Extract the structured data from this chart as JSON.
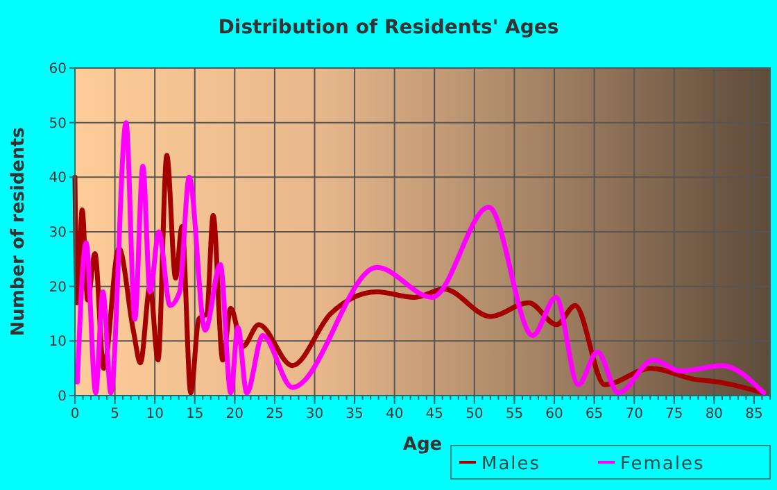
{
  "chart_data": {
    "type": "line",
    "title": "Distribution of Residents' Ages",
    "xlabel": "Age",
    "ylabel": "Number of residents",
    "xlim": [
      0,
      87
    ],
    "xticks": [
      0,
      5,
      10,
      15,
      20,
      25,
      30,
      35,
      40,
      45,
      50,
      55,
      60,
      65,
      70,
      75,
      80,
      85
    ],
    "ylim": [
      0,
      60
    ],
    "yticks": [
      0,
      10,
      20,
      30,
      40,
      50,
      60
    ],
    "grid": true,
    "legend": "bottom right",
    "line_style": "solid",
    "marker": "none",
    "series": [
      {
        "name": "Males",
        "color": "#a50000",
        "x": [
          0,
          0.3,
          0.9,
          1.6,
          2.5,
          3.6,
          5.5,
          7.3,
          8.2,
          9.4,
          10.4,
          11.5,
          12.6,
          13.4,
          14.5,
          15.5,
          16.5,
          17.3,
          18.5,
          19.5,
          21,
          23,
          27.2,
          32,
          37.8,
          42.5,
          46.2,
          52,
          56.8,
          60.3,
          62.6,
          66.3,
          72.1,
          77.5,
          80.5,
          86.2
        ],
        "values": [
          40,
          17,
          34,
          17.5,
          26,
          5,
          27,
          12,
          6,
          20,
          6.5,
          44,
          21.5,
          31,
          0.5,
          14,
          15,
          33,
          6.5,
          16,
          9,
          13,
          5.5,
          15,
          19,
          18,
          19.5,
          14.5,
          17,
          13,
          16.5,
          2,
          5,
          3,
          2.5,
          0.5
        ]
      },
      {
        "name": "Females",
        "color": "#ff00ff",
        "x": [
          0.3,
          1.4,
          2.6,
          3.5,
          4.5,
          6.4,
          7.5,
          8.5,
          9.4,
          10.5,
          11.9,
          13.1,
          14.3,
          16.3,
          18.2,
          19.5,
          20.4,
          21.5,
          23.5,
          27.2,
          37.8,
          44.7,
          51.8,
          57.3,
          60.2,
          63,
          65.4,
          68,
          72.4,
          75.8,
          81,
          86.2
        ],
        "values": [
          2.5,
          28,
          0.5,
          19,
          0.5,
          50,
          14,
          42,
          19,
          30,
          16.5,
          19,
          40,
          12,
          24,
          0.5,
          12.5,
          0.5,
          11,
          1.5,
          23.5,
          18,
          34.5,
          11,
          18,
          2,
          8,
          0.5,
          6.5,
          4.5,
          5.5,
          0.5
        ]
      }
    ]
  }
}
